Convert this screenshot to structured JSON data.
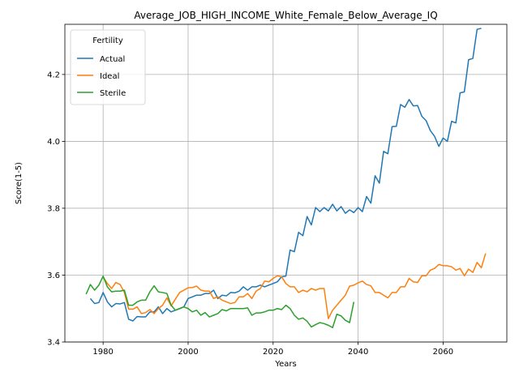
{
  "chart_data": {
    "type": "line",
    "title": "Average_JOB_HIGH_INCOME_White_Female_Below_Average_IQ",
    "xlabel": "Years",
    "ylabel": "Score(1-5)",
    "xlim": [
      1971,
      2075
    ],
    "ylim": [
      3.4,
      4.35
    ],
    "xticks": [
      1980,
      2000,
      2020,
      2040,
      2060
    ],
    "yticks": [
      3.4,
      3.6,
      3.8,
      4.0,
      4.2
    ],
    "ytick_labels": [
      "3.4",
      "3.6",
      "3.8",
      "4.0",
      "4.2"
    ],
    "grid": true,
    "legend": {
      "title": "Fertility",
      "placement": "top-left"
    },
    "series": [
      {
        "name": "Actual",
        "color": "#1f77b4",
        "x": [
          1977,
          1978,
          1979,
          1980,
          1981,
          1982,
          1983,
          1984,
          1985,
          1986,
          1987,
          1988,
          1989,
          1990,
          1991,
          1992,
          1993,
          1994,
          1995,
          1996,
          1997,
          1998,
          1999,
          2000,
          2001,
          2002,
          2003,
          2004,
          2005,
          2006,
          2007,
          2008,
          2009,
          2010,
          2011,
          2012,
          2013,
          2014,
          2015,
          2016,
          2017,
          2018,
          2019,
          2020,
          2021,
          2022,
          2023,
          2024,
          2025,
          2026,
          2027,
          2028,
          2029,
          2030,
          2031,
          2032,
          2033,
          2034,
          2035,
          2036,
          2037,
          2038,
          2039,
          2040,
          2041,
          2042,
          2043,
          2044,
          2045,
          2046,
          2047,
          2048,
          2049,
          2050,
          2051,
          2052,
          2053,
          2054,
          2055,
          2056,
          2057,
          2058,
          2059,
          2060,
          2061,
          2062,
          2063,
          2064,
          2065,
          2066,
          2067,
          2068,
          2069,
          2070
        ],
        "values": [
          3.53,
          3.515,
          3.518,
          3.548,
          3.52,
          3.505,
          3.515,
          3.514,
          3.518,
          3.468,
          3.463,
          3.476,
          3.475,
          3.475,
          3.49,
          3.49,
          3.505,
          3.485,
          3.5,
          3.49,
          3.495,
          3.5,
          3.505,
          3.53,
          3.535,
          3.54,
          3.54,
          3.545,
          3.545,
          3.555,
          3.53,
          3.54,
          3.538,
          3.548,
          3.547,
          3.552,
          3.565,
          3.555,
          3.565,
          3.565,
          3.57,
          3.565,
          3.57,
          3.575,
          3.58,
          3.595,
          3.597,
          3.675,
          3.67,
          3.728,
          3.718,
          3.775,
          3.75,
          3.802,
          3.79,
          3.802,
          3.792,
          3.812,
          3.792,
          3.805,
          3.785,
          3.795,
          3.787,
          3.802,
          3.79,
          3.835,
          3.815,
          3.897,
          3.875,
          3.97,
          3.963,
          4.044,
          4.045,
          4.11,
          4.102,
          4.125,
          4.106,
          4.107,
          4.075,
          4.062,
          4.032,
          4.015,
          3.985,
          4.01,
          4.0,
          4.06,
          4.055,
          4.145,
          4.148,
          4.244,
          4.248,
          4.335,
          4.338,
          null
        ],
        "values_note_removed": true
      },
      {
        "name": "Ideal",
        "color": "#ff7f0e",
        "x": [
          1980,
          1981,
          1982,
          1983,
          1984,
          1985,
          1986,
          1987,
          1988,
          1989,
          1990,
          1991,
          1992,
          1993,
          1994,
          1995,
          1996,
          1997,
          1998,
          1999,
          2000,
          2001,
          2002,
          2003,
          2004,
          2005,
          2006,
          2007,
          2008,
          2009,
          2010,
          2011,
          2012,
          2013,
          2014,
          2015,
          2016,
          2017,
          2018,
          2019,
          2020,
          2021,
          2022,
          2023,
          2024,
          2025,
          2026,
          2027,
          2028,
          2029,
          2030,
          2031,
          2032,
          2033,
          2034,
          2035,
          2036,
          2037,
          2038,
          2039,
          2040,
          2041,
          2042,
          2043,
          2044,
          2045,
          2046,
          2047,
          2048,
          2049,
          2050,
          2051,
          2052,
          2053,
          2054,
          2055,
          2056,
          2057,
          2058,
          2059,
          2060,
          2061,
          2062,
          2063,
          2064,
          2065,
          2066,
          2067,
          2068,
          2069,
          2070
        ],
        "values": [
          3.595,
          3.575,
          3.56,
          3.578,
          3.572,
          3.548,
          3.498,
          3.498,
          3.505,
          3.485,
          3.488,
          3.497,
          3.485,
          3.5,
          3.51,
          3.532,
          3.508,
          3.528,
          3.548,
          3.555,
          3.562,
          3.563,
          3.567,
          3.555,
          3.552,
          3.552,
          3.53,
          3.535,
          3.525,
          3.52,
          3.515,
          3.518,
          3.535,
          3.535,
          3.545,
          3.53,
          3.552,
          3.56,
          3.582,
          3.58,
          3.59,
          3.598,
          3.595,
          3.575,
          3.565,
          3.565,
          3.548,
          3.555,
          3.55,
          3.56,
          3.555,
          3.56,
          3.56,
          3.47,
          3.495,
          3.51,
          3.525,
          3.54,
          3.567,
          3.57,
          3.577,
          3.582,
          3.572,
          3.568,
          3.548,
          3.548,
          3.54,
          3.532,
          3.548,
          3.548,
          3.565,
          3.565,
          3.59,
          3.58,
          3.578,
          3.598,
          3.598,
          3.615,
          3.62,
          3.632,
          3.628,
          3.628,
          3.625,
          3.615,
          3.62,
          3.598,
          3.618,
          3.608,
          3.638,
          3.622,
          3.665
        ]
      },
      {
        "name": "Sterile",
        "color": "#2ca02c",
        "x": [
          1976,
          1977,
          1978,
          1979,
          1980,
          1981,
          1982,
          1983,
          1984,
          1985,
          1986,
          1987,
          1988,
          1989,
          1990,
          1991,
          1992,
          1993,
          1994,
          1995,
          1996,
          1997,
          1998,
          1999,
          2000,
          2001,
          2002,
          2003,
          2004,
          2005,
          2006,
          2007,
          2008,
          2009,
          2010,
          2011,
          2012,
          2013,
          2014,
          2015,
          2016,
          2017,
          2018,
          2019,
          2020,
          2021,
          2022,
          2023,
          2024,
          2025,
          2026,
          2027,
          2028,
          2029,
          2030,
          2031,
          2032,
          2033,
          2034,
          2035,
          2036,
          2037,
          2038,
          2039
        ],
        "values": [
          3.543,
          3.572,
          3.555,
          3.57,
          3.597,
          3.565,
          3.55,
          3.552,
          3.552,
          3.555,
          3.51,
          3.51,
          3.52,
          3.525,
          3.525,
          3.55,
          3.568,
          3.55,
          3.548,
          3.545,
          3.51,
          3.495,
          3.5,
          3.505,
          3.5,
          3.49,
          3.495,
          3.48,
          3.488,
          3.475,
          3.48,
          3.485,
          3.497,
          3.493,
          3.5,
          3.5,
          3.5,
          3.5,
          3.502,
          3.48,
          3.487,
          3.487,
          3.49,
          3.495,
          3.495,
          3.5,
          3.497,
          3.51,
          3.5,
          3.48,
          3.468,
          3.472,
          3.462,
          3.445,
          3.452,
          3.458,
          3.455,
          3.45,
          3.443,
          3.483,
          3.478,
          3.465,
          3.458,
          3.52
        ]
      }
    ]
  }
}
